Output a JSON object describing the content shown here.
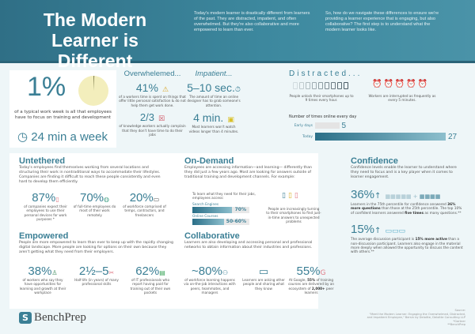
{
  "header": {
    "title": "The Modern Learner is Different",
    "intro1": "Today's modern learner is drastically different from learners of the past. They are distracted, impatient, and often overwhelmed. But they're also collaborative and more empowered to learn than ever.",
    "intro2": "So, how do we navigate these differences to ensure we're providing a learner experience that is engaging, but also collaborative? The first step is to understand what the modern learner looks like."
  },
  "training": {
    "value": "1%",
    "pie_fraction": 0.01,
    "text": "of a typical work week is all that employees have to focus on training and development",
    "time": "24 min a week",
    "pie_color": "#f3eebc"
  },
  "overwhelmed": {
    "title": "Overwhelemed...",
    "stat1": "41%",
    "text1": "of a workers time is spent on things that offer little personal satisfaction & do not help them get work done.",
    "stat2": "2/3",
    "text2": "of knowledge workers actually complain that they don't have time to do their jobs"
  },
  "impatient": {
    "title": "Impatient...",
    "stat1": "5–10 sec.",
    "text1": "The amount of time an online designer has to grab someone's attention.",
    "stat2": "4 min.",
    "text2": "Most learners won't watch videos longer than 4 minutes."
  },
  "distracted": {
    "title": "Distracted...",
    "phones_text": "People unlock their smartphones up to 9 times every hour.",
    "alarms_text": "Workers are interrupted as frequently as every 5 minutes.",
    "alarm_color": "#e07a86",
    "chart_title": "Number of times online every day",
    "bars": [
      {
        "label": "Early days",
        "value": 5
      },
      {
        "label": "Today",
        "value": 27
      }
    ]
  },
  "untethered": {
    "title": "Untethered",
    "text": "Today's employees find themselves working from several locations and structuring their work in nontraditional ways to accommodate their lifestyles. Companies are finding it difficult to reach these people consistently and even hard to develop them efficiently.",
    "stats": [
      {
        "value": "87%",
        "text": "of companies expect their employees to use their personal devices for work purposes *"
      },
      {
        "value": "70%",
        "text": "of full-time employees do most of their work remotely"
      },
      {
        "value": "20%",
        "text": "of workforce comprised of temps, contractors, and freelancers"
      }
    ]
  },
  "ondemand": {
    "title": "On-Demand",
    "text": "Employees are accessing information—and learning— differently than they did just a few years ago. Most are looking for answers outside of traditional training and development channels. For example:",
    "lead": "To learn what they need for their jobs, employees access:",
    "bars": [
      {
        "label": "Search Engines",
        "value": "70%",
        "fill": 0.7
      },
      {
        "label": "Online Courses",
        "value": "50-60%",
        "fill": 0.55
      }
    ],
    "phones_text": "People are increasingly turning to their smartphones to find just-in-time answers to unexpected problems"
  },
  "confidence": {
    "title": "Confidence",
    "text": "Confidence levels enable the learner to understand where they need to focus and is a key player when it comes to learner engagement.",
    "stat1": "36%",
    "text1a": "Learners in the 75th percentile for confidence answered ",
    "text1b": "36% more questions",
    "text1c": " than those at the 25th percentile. The top 10% of confident learners answered ",
    "text1d": "five times",
    "text1e": " as many questions.**",
    "stat2": "15%",
    "text2a": "The average discussion participant is ",
    "text2b": "15% more active",
    "text2c": " than a non-discussion participant. Learners also engage in the material more deeply when allowed the opportunity to discuss the content with others.**"
  },
  "empowered": {
    "title": "Empowered",
    "text": "People are more empowered to learn than ever to keep up with the rapidly changing digital landscape. More people are looking for options on their own because they aren't getting what they need from their employers.",
    "stats": [
      {
        "value": "38%",
        "text": "of workers who say they have opportunities for learning and growth at their workplace"
      },
      {
        "value": "2½–5",
        "text": "Half-life (in years) of many professional skills"
      },
      {
        "value": "62%",
        "text": "of IT professionals who report having paid for training out of their own pockets"
      }
    ]
  },
  "collaborative": {
    "title": "Collaborative",
    "text": "Learners are also developing and accessing personal and professional networks to obtain information about their industries and professions.",
    "stat1": "~80%",
    "text1": "of workforce learning happens via on-the-job interactions with peers, teammates, and managers",
    "text2": "Learners are asking other people and sharing what they know",
    "stat3": "55%",
    "text3a": "At Google, ",
    "text3b": "55%",
    "text3c": " of training courses are delivered by an ecosystem of ",
    "text3d": "2,000+",
    "text3e": " peer learners"
  },
  "footer": {
    "brand": "BenchPrep",
    "source": [
      "Source:",
      "\"Meet the Modern Learner: Engaging the Overwhelmed, Distracted,",
      "and Impatient Employee,\" Bersin by Deloitte, Deloitte Consulting LLP",
      "*Gartner",
      "**BenchPrep"
    ]
  }
}
